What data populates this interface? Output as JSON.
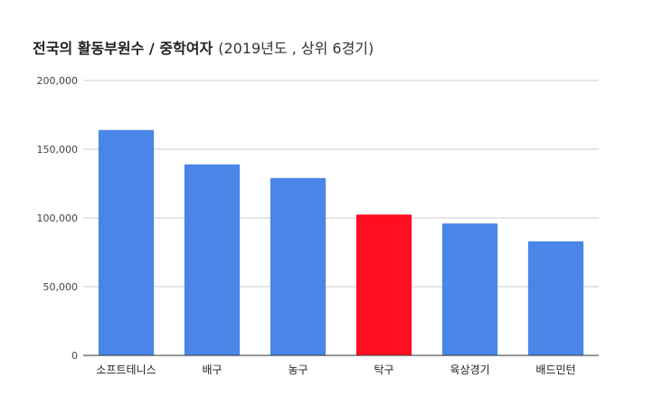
{
  "chart_data": {
    "type": "bar",
    "title": "전국의 활동부원수 / 중학여자",
    "subtitle": "(2019년도 , 상위 6경기)",
    "categories": [
      "소프트테니스",
      "배구",
      "농구",
      "탁구",
      "육상경기",
      "배드민턴"
    ],
    "values": [
      164000,
      139000,
      129000,
      102500,
      96000,
      83000
    ],
    "bar_colors": [
      "#4a86e8",
      "#4a86e8",
      "#4a86e8",
      "#ff0f1f",
      "#4a86e8",
      "#4a86e8"
    ],
    "yticks": [
      0,
      50000,
      100000,
      150000,
      200000
    ],
    "ytick_labels": [
      "0",
      "50,000",
      "100,000",
      "150,000",
      "200,000"
    ],
    "ylim": [
      0,
      200000
    ],
    "grid": true,
    "legend": "none",
    "xlabel": "",
    "ylabel": ""
  }
}
